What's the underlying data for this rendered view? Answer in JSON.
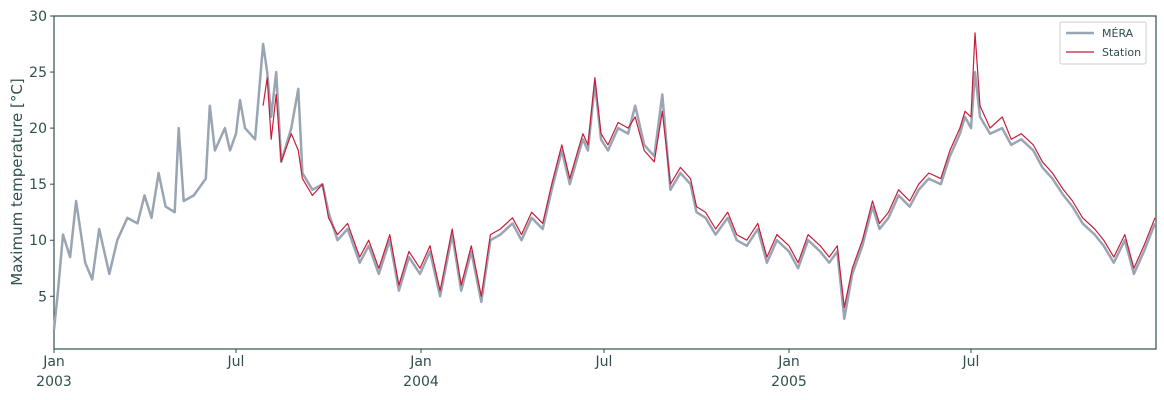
{
  "chart_data": {
    "type": "line",
    "ylabel": "Maximum temperature [°C]",
    "ylim": [
      0.3,
      30
    ],
    "yticks": [
      5,
      10,
      15,
      20,
      25,
      30
    ],
    "xlim": [
      "2003-01-01",
      "2006-01-01"
    ],
    "xticks": [
      {
        "date": "2003-01-01",
        "label": "Jan",
        "sublabel": "2003"
      },
      {
        "date": "2003-07-01",
        "label": "Jul",
        "sublabel": ""
      },
      {
        "date": "2004-01-01",
        "label": "Jan",
        "sublabel": "2004"
      },
      {
        "date": "2004-07-01",
        "label": "Jul",
        "sublabel": ""
      },
      {
        "date": "2005-01-01",
        "label": "Jan",
        "sublabel": "2005"
      },
      {
        "date": "2005-07-01",
        "label": "Jul",
        "sublabel": ""
      }
    ],
    "grid": false,
    "legend_position": "top-right",
    "series": [
      {
        "name": "MÉRA",
        "color": "#9aa5b4",
        "points": [
          [
            "2003-01-01",
            2.0
          ],
          [
            "2003-01-05",
            5.5
          ],
          [
            "2003-01-10",
            10.5
          ],
          [
            "2003-01-17",
            8.5
          ],
          [
            "2003-01-23",
            13.5
          ],
          [
            "2003-02-01",
            8.0
          ],
          [
            "2003-02-08",
            6.5
          ],
          [
            "2003-02-15",
            11.0
          ],
          [
            "2003-02-25",
            7.0
          ],
          [
            "2003-03-05",
            10.0
          ],
          [
            "2003-03-15",
            12.0
          ],
          [
            "2003-03-25",
            11.5
          ],
          [
            "2003-04-01",
            14.0
          ],
          [
            "2003-04-08",
            12.0
          ],
          [
            "2003-04-15",
            16.0
          ],
          [
            "2003-04-22",
            13.0
          ],
          [
            "2003-05-01",
            12.5
          ],
          [
            "2003-05-05",
            20.0
          ],
          [
            "2003-05-10",
            13.5
          ],
          [
            "2003-05-20",
            14.0
          ],
          [
            "2003-06-01",
            15.5
          ],
          [
            "2003-06-05",
            22.0
          ],
          [
            "2003-06-10",
            18.0
          ],
          [
            "2003-06-20",
            20.0
          ],
          [
            "2003-06-25",
            18.0
          ],
          [
            "2003-07-01",
            19.5
          ],
          [
            "2003-07-05",
            22.5
          ],
          [
            "2003-07-10",
            20.0
          ],
          [
            "2003-07-20",
            19.0
          ],
          [
            "2003-07-28",
            27.5
          ],
          [
            "2003-08-01",
            25.0
          ],
          [
            "2003-08-05",
            21.0
          ],
          [
            "2003-08-10",
            25.0
          ],
          [
            "2003-08-15",
            17.0
          ],
          [
            "2003-08-25",
            20.0
          ],
          [
            "2003-09-01",
            23.5
          ],
          [
            "2003-09-05",
            16.0
          ],
          [
            "2003-09-15",
            14.5
          ],
          [
            "2003-09-25",
            15.0
          ],
          [
            "2003-10-01",
            12.5
          ],
          [
            "2003-10-10",
            10.0
          ],
          [
            "2003-10-20",
            11.0
          ],
          [
            "2003-11-01",
            8.0
          ],
          [
            "2003-11-10",
            9.5
          ],
          [
            "2003-11-20",
            7.0
          ],
          [
            "2003-12-01",
            10.0
          ],
          [
            "2003-12-10",
            5.5
          ],
          [
            "2003-12-20",
            8.5
          ],
          [
            "2003-12-31",
            7.0
          ],
          [
            "2004-01-10",
            9.0
          ],
          [
            "2004-01-20",
            5.0
          ],
          [
            "2004-02-01",
            10.5
          ],
          [
            "2004-02-10",
            5.5
          ],
          [
            "2004-02-20",
            9.0
          ],
          [
            "2004-03-01",
            4.5
          ],
          [
            "2004-03-10",
            10.0
          ],
          [
            "2004-03-20",
            10.5
          ],
          [
            "2004-04-01",
            11.5
          ],
          [
            "2004-04-10",
            10.0
          ],
          [
            "2004-04-20",
            12.0
          ],
          [
            "2004-05-01",
            11.0
          ],
          [
            "2004-05-10",
            14.5
          ],
          [
            "2004-05-20",
            18.0
          ],
          [
            "2004-05-28",
            15.0
          ],
          [
            "2004-06-05",
            17.5
          ],
          [
            "2004-06-10",
            19.0
          ],
          [
            "2004-06-15",
            18.0
          ],
          [
            "2004-06-22",
            24.0
          ],
          [
            "2004-06-28",
            19.0
          ],
          [
            "2004-07-05",
            18.0
          ],
          [
            "2004-07-15",
            20.0
          ],
          [
            "2004-07-25",
            19.5
          ],
          [
            "2004-08-01",
            22.0
          ],
          [
            "2004-08-10",
            18.5
          ],
          [
            "2004-08-20",
            17.5
          ],
          [
            "2004-08-28",
            23.0
          ],
          [
            "2004-09-05",
            14.5
          ],
          [
            "2004-09-15",
            16.0
          ],
          [
            "2004-09-25",
            15.0
          ],
          [
            "2004-10-01",
            12.5
          ],
          [
            "2004-10-10",
            12.0
          ],
          [
            "2004-10-20",
            10.5
          ],
          [
            "2004-11-01",
            12.0
          ],
          [
            "2004-11-10",
            10.0
          ],
          [
            "2004-11-20",
            9.5
          ],
          [
            "2004-12-01",
            11.0
          ],
          [
            "2004-12-10",
            8.0
          ],
          [
            "2004-12-20",
            10.0
          ],
          [
            "2005-01-01",
            9.0
          ],
          [
            "2005-01-10",
            7.5
          ],
          [
            "2005-01-20",
            10.0
          ],
          [
            "2005-02-01",
            9.0
          ],
          [
            "2005-02-10",
            8.0
          ],
          [
            "2005-02-18",
            9.0
          ],
          [
            "2005-02-25",
            3.0
          ],
          [
            "2005-03-05",
            7.0
          ],
          [
            "2005-03-15",
            9.5
          ],
          [
            "2005-03-25",
            13.0
          ],
          [
            "2005-04-01",
            11.0
          ],
          [
            "2005-04-10",
            12.0
          ],
          [
            "2005-04-20",
            14.0
          ],
          [
            "2005-05-01",
            13.0
          ],
          [
            "2005-05-10",
            14.5
          ],
          [
            "2005-05-20",
            15.5
          ],
          [
            "2005-06-01",
            15.0
          ],
          [
            "2005-06-10",
            17.5
          ],
          [
            "2005-06-20",
            19.5
          ],
          [
            "2005-06-25",
            21.0
          ],
          [
            "2005-07-01",
            20.0
          ],
          [
            "2005-07-05",
            25.0
          ],
          [
            "2005-07-10",
            21.0
          ],
          [
            "2005-07-20",
            19.5
          ],
          [
            "2005-08-01",
            20.0
          ],
          [
            "2005-08-10",
            18.5
          ],
          [
            "2005-08-20",
            19.0
          ],
          [
            "2005-09-01",
            18.0
          ],
          [
            "2005-09-10",
            16.5
          ],
          [
            "2005-09-20",
            15.5
          ],
          [
            "2005-10-01",
            14.0
          ],
          [
            "2005-10-10",
            13.0
          ],
          [
            "2005-10-20",
            11.5
          ],
          [
            "2005-11-01",
            10.5
          ],
          [
            "2005-11-10",
            9.5
          ],
          [
            "2005-11-20",
            8.0
          ],
          [
            "2005-12-01",
            10.0
          ],
          [
            "2005-12-10",
            7.0
          ],
          [
            "2005-12-20",
            9.0
          ],
          [
            "2005-12-31",
            11.5
          ]
        ]
      },
      {
        "name": "Station",
        "color": "#c41e3a",
        "points": [
          [
            "2003-07-28",
            22.0
          ],
          [
            "2003-08-01",
            24.5
          ],
          [
            "2003-08-05",
            19.0
          ],
          [
            "2003-08-10",
            23.0
          ],
          [
            "2003-08-15",
            17.0
          ],
          [
            "2003-08-25",
            19.5
          ],
          [
            "2003-09-01",
            18.0
          ],
          [
            "2003-09-05",
            15.5
          ],
          [
            "2003-09-15",
            14.0
          ],
          [
            "2003-09-25",
            15.0
          ],
          [
            "2003-10-01",
            12.0
          ],
          [
            "2003-10-10",
            10.5
          ],
          [
            "2003-10-20",
            11.5
          ],
          [
            "2003-11-01",
            8.5
          ],
          [
            "2003-11-10",
            10.0
          ],
          [
            "2003-11-20",
            7.5
          ],
          [
            "2003-12-01",
            10.5
          ],
          [
            "2003-12-10",
            6.0
          ],
          [
            "2003-12-20",
            9.0
          ],
          [
            "2003-12-31",
            7.5
          ],
          [
            "2004-01-10",
            9.5
          ],
          [
            "2004-01-20",
            5.5
          ],
          [
            "2004-02-01",
            11.0
          ],
          [
            "2004-02-10",
            6.0
          ],
          [
            "2004-02-20",
            9.5
          ],
          [
            "2004-03-01",
            5.0
          ],
          [
            "2004-03-10",
            10.5
          ],
          [
            "2004-03-20",
            11.0
          ],
          [
            "2004-04-01",
            12.0
          ],
          [
            "2004-04-10",
            10.5
          ],
          [
            "2004-04-20",
            12.5
          ],
          [
            "2004-05-01",
            11.5
          ],
          [
            "2004-05-10",
            15.0
          ],
          [
            "2004-05-20",
            18.5
          ],
          [
            "2004-05-28",
            15.5
          ],
          [
            "2004-06-05",
            18.0
          ],
          [
            "2004-06-10",
            19.5
          ],
          [
            "2004-06-15",
            18.5
          ],
          [
            "2004-06-22",
            24.5
          ],
          [
            "2004-06-28",
            19.5
          ],
          [
            "2004-07-05",
            18.5
          ],
          [
            "2004-07-15",
            20.5
          ],
          [
            "2004-07-25",
            20.0
          ],
          [
            "2004-08-01",
            21.0
          ],
          [
            "2004-08-10",
            18.0
          ],
          [
            "2004-08-20",
            17.0
          ],
          [
            "2004-08-28",
            21.5
          ],
          [
            "2004-09-05",
            15.0
          ],
          [
            "2004-09-15",
            16.5
          ],
          [
            "2004-09-25",
            15.5
          ],
          [
            "2004-10-01",
            13.0
          ],
          [
            "2004-10-10",
            12.5
          ],
          [
            "2004-10-20",
            11.0
          ],
          [
            "2004-11-01",
            12.5
          ],
          [
            "2004-11-10",
            10.5
          ],
          [
            "2004-11-20",
            10.0
          ],
          [
            "2004-12-01",
            11.5
          ],
          [
            "2004-12-10",
            8.5
          ],
          [
            "2004-12-20",
            10.5
          ],
          [
            "2005-01-01",
            9.5
          ],
          [
            "2005-01-10",
            8.0
          ],
          [
            "2005-01-20",
            10.5
          ],
          [
            "2005-02-01",
            9.5
          ],
          [
            "2005-02-10",
            8.5
          ],
          [
            "2005-02-18",
            9.5
          ],
          [
            "2005-02-25",
            4.0
          ],
          [
            "2005-03-05",
            7.5
          ],
          [
            "2005-03-15",
            10.0
          ],
          [
            "2005-03-25",
            13.5
          ],
          [
            "2005-04-01",
            11.5
          ],
          [
            "2005-04-10",
            12.5
          ],
          [
            "2005-04-20",
            14.5
          ],
          [
            "2005-05-01",
            13.5
          ],
          [
            "2005-05-10",
            15.0
          ],
          [
            "2005-05-20",
            16.0
          ],
          [
            "2005-06-01",
            15.5
          ],
          [
            "2005-06-10",
            18.0
          ],
          [
            "2005-06-20",
            20.0
          ],
          [
            "2005-06-25",
            21.5
          ],
          [
            "2005-07-01",
            21.0
          ],
          [
            "2005-07-05",
            28.5
          ],
          [
            "2005-07-10",
            22.0
          ],
          [
            "2005-07-20",
            20.0
          ],
          [
            "2005-08-01",
            21.0
          ],
          [
            "2005-08-10",
            19.0
          ],
          [
            "2005-08-20",
            19.5
          ],
          [
            "2005-09-01",
            18.5
          ],
          [
            "2005-09-10",
            17.0
          ],
          [
            "2005-09-20",
            16.0
          ],
          [
            "2005-10-01",
            14.5
          ],
          [
            "2005-10-10",
            13.5
          ],
          [
            "2005-10-20",
            12.0
          ],
          [
            "2005-11-01",
            11.0
          ],
          [
            "2005-11-10",
            10.0
          ],
          [
            "2005-11-20",
            8.5
          ],
          [
            "2005-12-01",
            10.5
          ],
          [
            "2005-12-10",
            7.5
          ],
          [
            "2005-12-20",
            9.5
          ],
          [
            "2005-12-31",
            12.0
          ]
        ]
      }
    ]
  }
}
